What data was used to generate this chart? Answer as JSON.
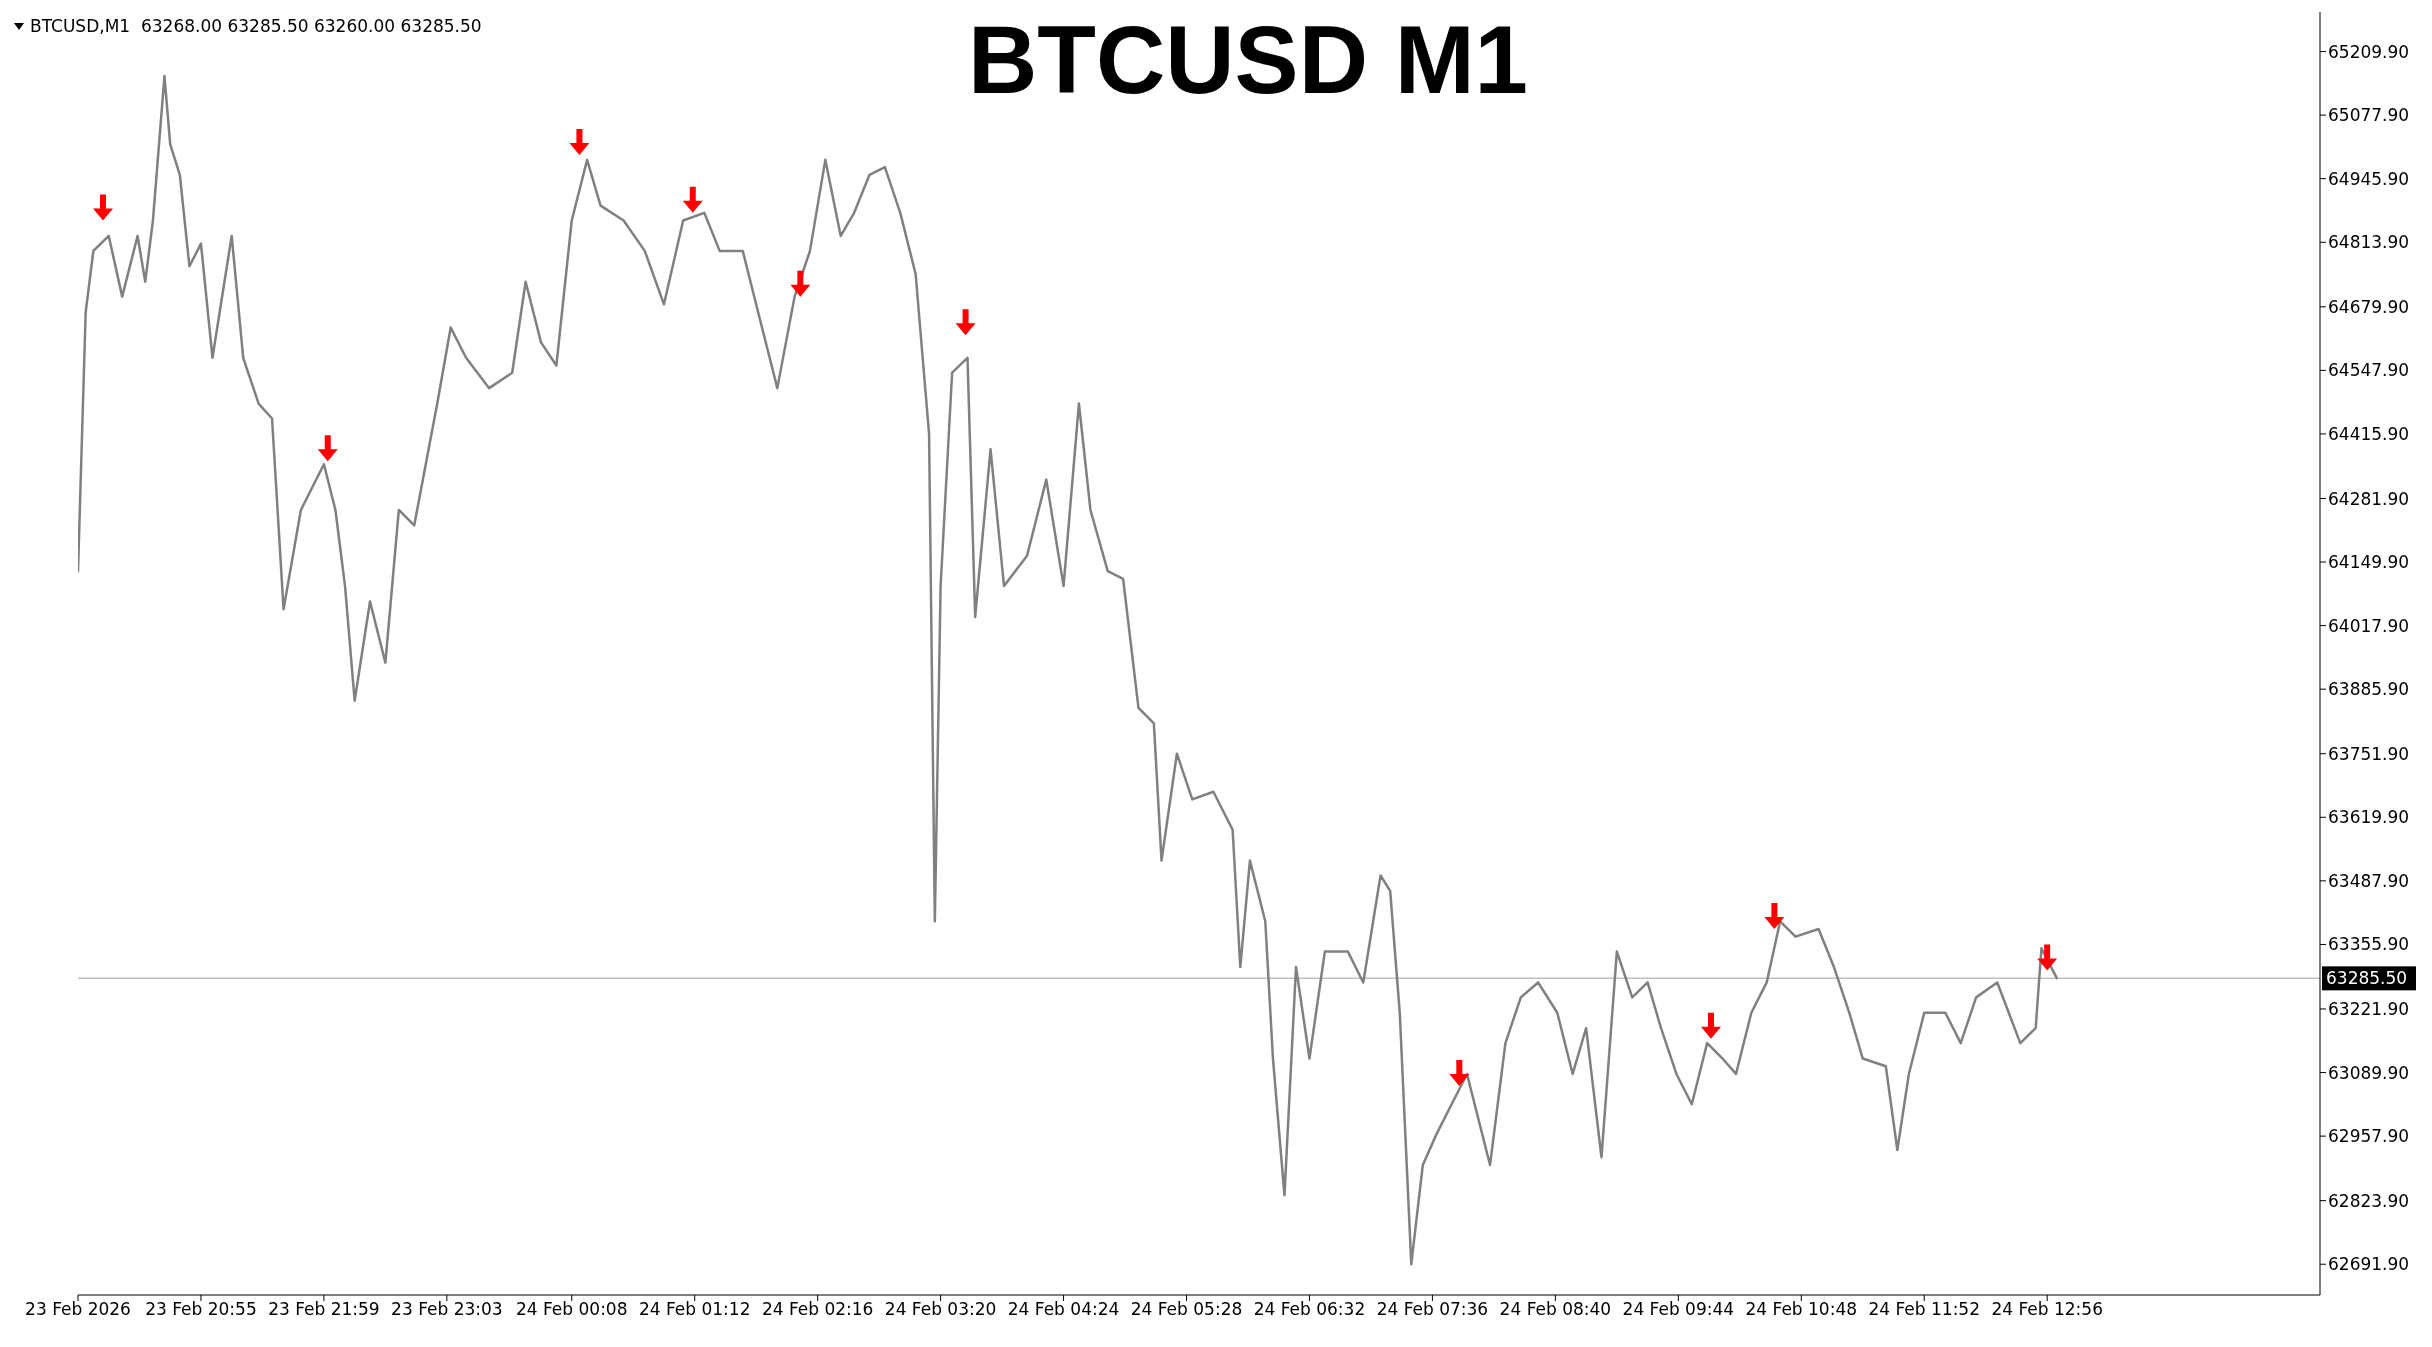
{
  "chart_data": {
    "type": "line",
    "title": "BTCUSD M1",
    "annotations": [
      "BTCUSD,M1  63268.00 63285.50 63260.00 63285.50"
    ],
    "xlim": [
      "2026-02-23T19:51",
      "2026-02-24T15:18"
    ],
    "xticks": [
      {
        "value": "2026-02-23T19:51",
        "label": "23 Feb 2026"
      },
      {
        "value": "2026-02-23T20:55",
        "label": "23 Feb 20:55"
      },
      {
        "value": "2026-02-23T21:59",
        "label": "23 Feb 21:59"
      },
      {
        "value": "2026-02-23T23:03",
        "label": "23 Feb 23:03"
      },
      {
        "value": "2026-02-24T00:08",
        "label": "24 Feb 00:08"
      },
      {
        "value": "2026-02-24T01:12",
        "label": "24 Feb 01:12"
      },
      {
        "value": "2026-02-24T02:16",
        "label": "24 Feb 02:16"
      },
      {
        "value": "2026-02-24T03:20",
        "label": "24 Feb 03:20"
      },
      {
        "value": "2026-02-24T04:24",
        "label": "24 Feb 04:24"
      },
      {
        "value": "2026-02-24T05:28",
        "label": "24 Feb 05:28"
      },
      {
        "value": "2026-02-24T06:32",
        "label": "24 Feb 06:32"
      },
      {
        "value": "2026-02-24T07:36",
        "label": "24 Feb 07:36"
      },
      {
        "value": "2026-02-24T08:40",
        "label": "24 Feb 08:40"
      },
      {
        "value": "2026-02-24T09:44",
        "label": "24 Feb 09:44"
      },
      {
        "value": "2026-02-24T10:48",
        "label": "24 Feb 10:48"
      },
      {
        "value": "2026-02-24T11:52",
        "label": "24 Feb 11:52"
      },
      {
        "value": "2026-02-24T12:56",
        "label": "24 Feb 12:56"
      }
    ],
    "ylim": [
      62628,
      65292
    ],
    "yticks": [
      {
        "value": 62691.9,
        "label": "62691.90"
      },
      {
        "value": 62823.9,
        "label": "62823.90"
      },
      {
        "value": 62957.9,
        "label": "62957.90"
      },
      {
        "value": 63089.9,
        "label": "63089.90"
      },
      {
        "value": 63221.9,
        "label": "63221.90"
      },
      {
        "value": 63355.9,
        "label": "63355.90"
      },
      {
        "value": 63487.9,
        "label": "63487.90"
      },
      {
        "value": 63619.9,
        "label": "63619.90"
      },
      {
        "value": 63751.9,
        "label": "63751.90"
      },
      {
        "value": 63885.9,
        "label": "63885.90"
      },
      {
        "value": 64017.9,
        "label": "64017.90"
      },
      {
        "value": 64149.9,
        "label": "64149.90"
      },
      {
        "value": 64281.9,
        "label": "64281.90"
      },
      {
        "value": 64415.9,
        "label": "64415.90"
      },
      {
        "value": 64547.9,
        "label": "64547.90"
      },
      {
        "value": 64679.9,
        "label": "64679.90"
      },
      {
        "value": 64813.9,
        "label": "64813.90"
      },
      {
        "value": 64945.9,
        "label": "64945.90"
      },
      {
        "value": 65077.9,
        "label": "65077.90"
      },
      {
        "value": 65209.9,
        "label": "65209.90"
      }
    ],
    "legend": false,
    "ref_lines": [
      {
        "axis": "y",
        "value": 63285.5,
        "label": "63285.50",
        "color": "#c0c0c0"
      }
    ],
    "series": [
      {
        "color": "#808080",
        "x": [
          "2026-02-23T19:51",
          "2026-02-23T19:55",
          "2026-02-23T19:59",
          "2026-02-23T20:07",
          "2026-02-23T20:14",
          "2026-02-23T20:22",
          "2026-02-23T20:26",
          "2026-02-23T20:30",
          "2026-02-23T20:36",
          "2026-02-23T20:39",
          "2026-02-23T20:44",
          "2026-02-23T20:49",
          "2026-02-23T20:55",
          "2026-02-23T21:01",
          "2026-02-23T21:11",
          "2026-02-23T21:17",
          "2026-02-23T21:25",
          "2026-02-23T21:32",
          "2026-02-23T21:38",
          "2026-02-23T21:47",
          "2026-02-23T21:59",
          "2026-02-23T22:05",
          "2026-02-23T22:10",
          "2026-02-23T22:15",
          "2026-02-23T22:23",
          "2026-02-23T22:31",
          "2026-02-23T22:38",
          "2026-02-23T22:46",
          "2026-02-23T22:58",
          "2026-02-23T23:05",
          "2026-02-23T23:13",
          "2026-02-23T23:25",
          "2026-02-23T23:37",
          "2026-02-23T23:44",
          "2026-02-23T23:52",
          "2026-02-24T00:00",
          "2026-02-24T00:08",
          "2026-02-24T00:16",
          "2026-02-24T00:23",
          "2026-02-24T00:35",
          "2026-02-24T00:46",
          "2026-02-24T00:56",
          "2026-02-24T01:06",
          "2026-02-24T01:17",
          "2026-02-24T01:25",
          "2026-02-24T01:37",
          "2026-02-24T01:45",
          "2026-02-24T01:55",
          "2026-02-24T02:04",
          "2026-02-24T02:12",
          "2026-02-24T02:20",
          "2026-02-24T02:28",
          "2026-02-24T02:35",
          "2026-02-24T02:43",
          "2026-02-24T02:51",
          "2026-02-24T02:59",
          "2026-02-24T03:07",
          "2026-02-24T03:14",
          "2026-02-24T03:17",
          "2026-02-24T03:20",
          "2026-02-24T03:26",
          "2026-02-24T03:34",
          "2026-02-24T03:38",
          "2026-02-24T03:46",
          "2026-02-24T03:53",
          "2026-02-24T04:05",
          "2026-02-24T04:15",
          "2026-02-24T04:24",
          "2026-02-24T04:32",
          "2026-02-24T04:38",
          "2026-02-24T04:47",
          "2026-02-24T04:55",
          "2026-02-24T05:03",
          "2026-02-24T05:11",
          "2026-02-24T05:15",
          "2026-02-24T05:23",
          "2026-02-24T05:31",
          "2026-02-24T05:42",
          "2026-02-24T05:52",
          "2026-02-24T05:56",
          "2026-02-24T06:01",
          "2026-02-24T06:09",
          "2026-02-24T06:13",
          "2026-02-24T06:19",
          "2026-02-24T06:25",
          "2026-02-24T06:32",
          "2026-02-24T06:40",
          "2026-02-24T06:52",
          "2026-02-24T07:00",
          "2026-02-24T07:09",
          "2026-02-24T07:14",
          "2026-02-24T07:19",
          "2026-02-24T07:25",
          "2026-02-24T07:31",
          "2026-02-24T07:38",
          "2026-02-24T07:46",
          "2026-02-24T07:54",
          "2026-02-24T08:06",
          "2026-02-24T08:14",
          "2026-02-24T08:22",
          "2026-02-24T08:31",
          "2026-02-24T08:41",
          "2026-02-24T08:49",
          "2026-02-24T08:56",
          "2026-02-24T09:04",
          "2026-02-24T09:12",
          "2026-02-24T09:20",
          "2026-02-24T09:28",
          "2026-02-24T09:35",
          "2026-02-24T09:43",
          "2026-02-24T09:51",
          "2026-02-24T09:59",
          "2026-02-24T10:07",
          "2026-02-24T10:14",
          "2026-02-24T10:22",
          "2026-02-24T10:30",
          "2026-02-24T10:37",
          "2026-02-24T10:45",
          "2026-02-24T10:57",
          "2026-02-24T11:05",
          "2026-02-24T11:13",
          "2026-02-24T11:20",
          "2026-02-24T11:32",
          "2026-02-24T11:38",
          "2026-02-24T11:44",
          "2026-02-24T11:52",
          "2026-02-24T12:03",
          "2026-02-24T12:11",
          "2026-02-24T12:19",
          "2026-02-24T12:30",
          "2026-02-24T12:42",
          "2026-02-24T12:50",
          "2026-02-24T12:53",
          "2026-02-24T13:01"
        ],
        "values": [
          64131,
          64669,
          64796,
          64827,
          64701,
          64827,
          64732,
          64859,
          65159,
          65017,
          64954,
          64764,
          64811,
          64574,
          64827,
          64574,
          64479,
          64448,
          64052,
          64258,
          64353,
          64258,
          64100,
          63862,
          64068,
          63941,
          64258,
          64226,
          64479,
          64637,
          64574,
          64511,
          64543,
          64732,
          64606,
          64558,
          64859,
          64985,
          64890,
          64859,
          64796,
          64685,
          64859,
          64875,
          64796,
          64796,
          64669,
          64511,
          64701,
          64796,
          64985,
          64827,
          64875,
          64954,
          64970,
          64875,
          64748,
          64416,
          63404,
          64100,
          64543,
          64574,
          64036,
          64384,
          64100,
          64163,
          64321,
          64100,
          64479,
          64258,
          64131,
          64115,
          63847,
          63815,
          63530,
          63752,
          63657,
          63673,
          63594,
          63309,
          63530,
          63404,
          63119,
          62835,
          63309,
          63119,
          63341,
          63341,
          63277,
          63499,
          63467,
          63214,
          62692,
          62898,
          62961,
          63024,
          63087,
          62898,
          63151,
          63246,
          63277,
          63214,
          63087,
          63182,
          62914,
          63341,
          63246,
          63277,
          63182,
          63087,
          63024,
          63151,
          63119,
          63087,
          63214,
          63277,
          63404,
          63372,
          63388,
          63309,
          63214,
          63119,
          63103,
          62929,
          63087,
          63214,
          63214,
          63151,
          63246,
          63277,
          63151,
          63182,
          63348,
          63286
        ]
      },
      {
        "type": "scatter",
        "color": "#ff0000",
        "x": [
          "2026-02-23T20:04",
          "2026-02-23T22:01",
          "2026-02-24T00:12",
          "2026-02-24T01:11",
          "2026-02-24T02:07",
          "2026-02-24T03:33",
          "2026-02-24T07:50",
          "2026-02-24T10:01",
          "2026-02-24T10:34",
          "2026-02-24T12:56"
        ],
        "values": [
          64886,
          64386,
          65022,
          64902,
          64728,
          64648,
          63089,
          63187,
          63415,
          63329
        ]
      }
    ]
  }
}
